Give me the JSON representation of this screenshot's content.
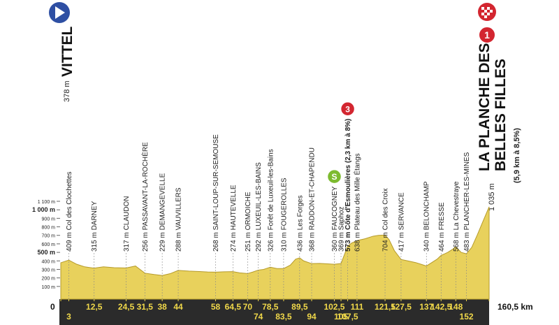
{
  "chart_data": {
    "type": "area",
    "color": "#e8d15c",
    "x": [
      0,
      3,
      6,
      9,
      12.5,
      16,
      20,
      24.5,
      28,
      31.5,
      35,
      38,
      41,
      44,
      48,
      52,
      55,
      58,
      61,
      64.5,
      67,
      70,
      72,
      74,
      76,
      78.5,
      81,
      83.5,
      86,
      88,
      89.5,
      91,
      94,
      97,
      100,
      102.5,
      105,
      107.5,
      109,
      111,
      114,
      117,
      119,
      121.5,
      123,
      125,
      127.5,
      130,
      133,
      135,
      137,
      139,
      141,
      142.5,
      145,
      147,
      148,
      150,
      152,
      154,
      156,
      158,
      160.5
    ],
    "values": [
      378,
      409,
      360,
      330,
      315,
      330,
      320,
      317,
      340,
      256,
      240,
      229,
      250,
      288,
      280,
      275,
      270,
      268,
      272,
      274,
      260,
      251,
      270,
      292,
      300,
      326,
      310,
      310,
      350,
      420,
      436,
      400,
      368,
      370,
      365,
      360,
      369,
      573,
      610,
      638,
      660,
      690,
      700,
      704,
      650,
      520,
      417,
      400,
      380,
      360,
      340,
      380,
      420,
      464,
      500,
      540,
      568,
      500,
      483,
      560,
      700,
      850,
      1035
    ],
    "xlim": [
      0,
      160.5
    ],
    "ylim": [
      0,
      1100
    ],
    "yticks": [
      {
        "value": 100,
        "label": "100 m"
      },
      {
        "value": 200,
        "label": "200 m"
      },
      {
        "value": 300,
        "label": "300 m"
      },
      {
        "value": 400,
        "label": "400 m"
      },
      {
        "value": 500,
        "label": "500 m"
      },
      {
        "value": 600,
        "label": "600 m"
      },
      {
        "value": 700,
        "label": "700 m"
      },
      {
        "value": 800,
        "label": "800 m"
      },
      {
        "value": 900,
        "label": "900 m"
      },
      {
        "value": 1000,
        "label": "1 000 m"
      },
      {
        "value": 1100,
        "label": "1 100 m"
      }
    ],
    "xticks": [
      0,
      3,
      {
        "value": 12.5,
        "label": "12,5"
      },
      {
        "value": 24.5,
        "label": "24,5"
      },
      {
        "value": 31.5,
        "label": "31,5"
      },
      38,
      44,
      58,
      {
        "value": 64.5,
        "label": "64,5"
      },
      70,
      74,
      {
        "value": 78.5,
        "label": "78,5"
      },
      {
        "value": 83.5,
        "label": "83,5"
      },
      {
        "value": 89.5,
        "label": "89,5"
      },
      94,
      {
        "value": 102.5,
        "label": "102,5"
      },
      105,
      {
        "value": 107.5,
        "label": "107,5"
      },
      111,
      {
        "value": 121.5,
        "label": "121,5"
      },
      {
        "value": 127.5,
        "label": "127,5"
      },
      137,
      {
        "value": 142.5,
        "label": "142,5"
      },
      148,
      152,
      {
        "value": 160.5,
        "label": "160,5 km"
      }
    ],
    "start": {
      "name": "VITTEL",
      "elevation": "378 m"
    },
    "finish": {
      "name_lines": [
        "LA PLANCHE DES",
        "BELLES FILLES"
      ],
      "climb": "(5,9 km à 8,5%)",
      "elevation": "1 035 m",
      "category": "1"
    },
    "waypoints": [
      {
        "km": 3,
        "label": "409 m Col des Clochettes"
      },
      {
        "km": 12.5,
        "label": "315 m DARNEY"
      },
      {
        "km": 24.5,
        "label": "317 m CLAUDON"
      },
      {
        "km": 31.5,
        "label": "256 m PASSAVANT-LA-ROCHÈRE"
      },
      {
        "km": 38,
        "label": "229 m DEMANGEVELLE"
      },
      {
        "km": 44,
        "label": "288 m VAUVILLERS"
      },
      {
        "km": 58,
        "label": "268 m SAINT-LOUP-SUR-SEMOUSE"
      },
      {
        "km": 64.5,
        "label": "274 m HAUTEVELLE"
      },
      {
        "km": 70,
        "label": "251 m ORMOICHE"
      },
      {
        "km": 74,
        "label": "292 m LUXEUIL-LES-BAINS"
      },
      {
        "km": 78.5,
        "label": "326 m Forêt de Luxeuil-les-Bains"
      },
      {
        "km": 83.5,
        "label": "310 m FOUGEROLLES"
      },
      {
        "km": 89.5,
        "label": "436 m Les Forges"
      },
      {
        "km": 94,
        "label": "368 m RADDON-ET-CHAPENDU"
      },
      {
        "km": 102.5,
        "label": "360 m FAUCOGNEY",
        "sprint": "S"
      },
      {
        "km": 105,
        "label": "369 m Saphoz"
      },
      {
        "km": 107.5,
        "label": "573 m Côte d'Esmoulières (2,3 km à 8%)",
        "climb": "3"
      },
      {
        "km": 111,
        "label": "638 m Plateau des Mille Étangs"
      },
      {
        "km": 121.5,
        "label": "704 m Col des Croix"
      },
      {
        "km": 127.5,
        "label": "417 m SERVANCE"
      },
      {
        "km": 137,
        "label": "340 m BELONCHAMP"
      },
      {
        "km": 142.5,
        "label": "464 m FRESSE"
      },
      {
        "km": 148,
        "label": "568 m La Chevestraye"
      },
      {
        "km": 152,
        "label": "483 m PLANCHER-LES-MINES"
      }
    ]
  }
}
